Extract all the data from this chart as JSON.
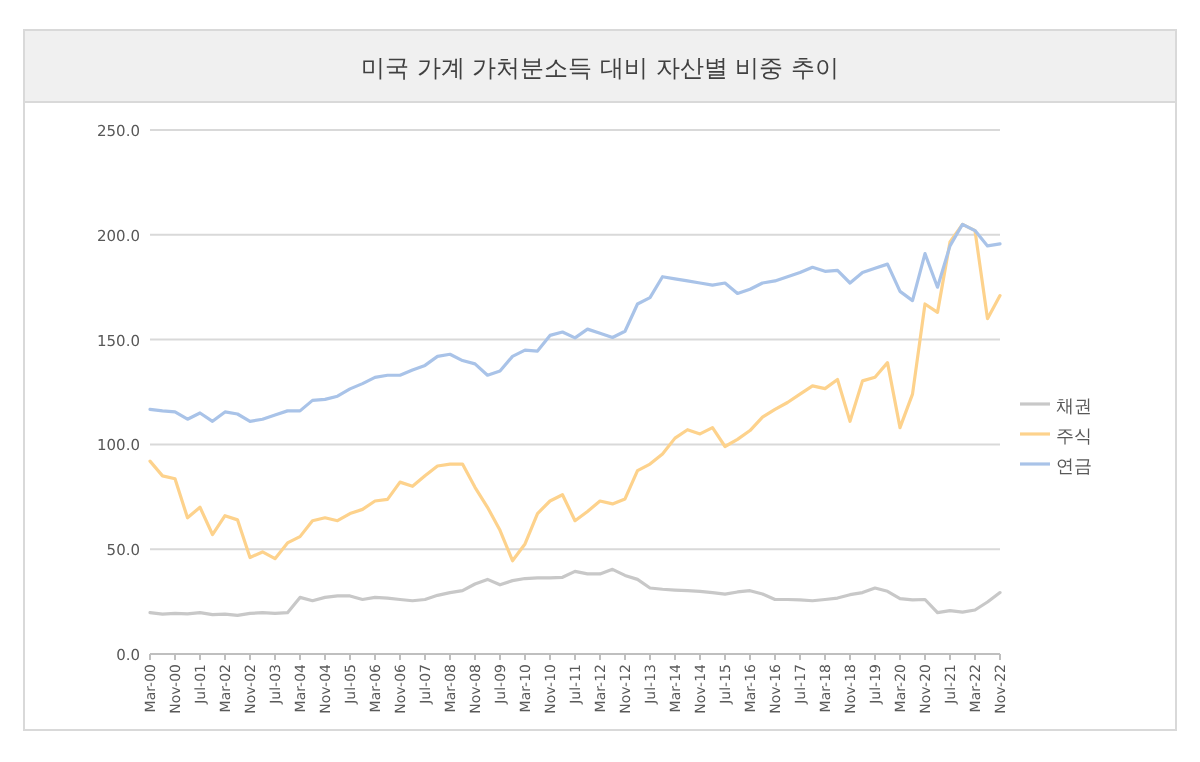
{
  "chart_data": {
    "type": "line",
    "title": "미국 가계 가처분소득 대비 자산별 비중 추이",
    "categories": [
      "Mar-00",
      null,
      "Nov-00",
      null,
      "Jul-01",
      null,
      "Mar-02",
      null,
      "Nov-02",
      null,
      "Jul-03",
      null,
      "Mar-04",
      null,
      "Nov-04",
      null,
      "Jul-05",
      null,
      "Mar-06",
      null,
      "Nov-06",
      null,
      "Jul-07",
      null,
      "Mar-08",
      null,
      "Nov-08",
      null,
      "Jul-09",
      null,
      "Mar-10",
      null,
      "Nov-10",
      null,
      "Jul-11",
      null,
      "Mar-12",
      null,
      "Nov-12",
      null,
      "Jul-13",
      null,
      "Mar-14",
      null,
      "Nov-14",
      null,
      "Jul-15",
      null,
      "Mar-16",
      null,
      "Nov-16",
      null,
      "Jul-17",
      null,
      "Mar-18",
      null,
      "Nov-18",
      null,
      "Jul-19",
      null,
      "Mar-20",
      null,
      "Nov-20",
      null,
      "Jul-21",
      null,
      "Mar-22",
      null,
      "Nov-22"
    ],
    "series": [
      {
        "name": "채권",
        "color": "#c8c8c8",
        "values": [
          19.7,
          19,
          19.4,
          19.1,
          19.7,
          18.8,
          19,
          18.4,
          19.4,
          19.7,
          19.4,
          19.7,
          27,
          25.4,
          27,
          27.7,
          27.7,
          26,
          27,
          26.7,
          26,
          25.4,
          26,
          28,
          29.3,
          30.2,
          33.4,
          35.6,
          33,
          35,
          36,
          36.3,
          36.3,
          36.6,
          39.4,
          38.2,
          38.2,
          40.4,
          37.5,
          35.6,
          31.5,
          30.9,
          30.5,
          30.2,
          29.9,
          29.3,
          28.6,
          29.6,
          30.2,
          28.6,
          26,
          26,
          25.8,
          25.4,
          26,
          26.7,
          28.3,
          29.3,
          31.5,
          29.9,
          26.4,
          25.8,
          26,
          19.7,
          20.7,
          20,
          21,
          24.8,
          29.3
        ]
      },
      {
        "name": "주식",
        "color": "#fdd28c",
        "values": [
          92,
          85,
          83.6,
          65,
          70,
          57,
          66,
          64,
          46,
          48.7,
          45.5,
          53,
          56,
          63.6,
          65,
          63.6,
          67,
          69,
          73,
          73.8,
          82,
          80,
          85,
          89.7,
          90.6,
          90.6,
          79.5,
          70,
          59,
          44.5,
          52.5,
          67,
          73,
          76,
          63.6,
          68,
          73,
          71.6,
          74,
          87.5,
          90.6,
          95.4,
          103,
          107,
          105,
          108,
          99,
          102.4,
          106.6,
          113,
          116.7,
          120,
          124,
          127.9,
          126.6,
          131,
          111,
          130.3,
          132,
          139,
          108,
          124,
          167,
          163,
          196.6,
          205,
          202,
          160,
          171
        ]
      },
      {
        "name": "연금",
        "color": "#a9c3e8",
        "values": [
          116.7,
          116,
          115.5,
          112,
          115,
          111,
          115.5,
          114.5,
          111,
          112,
          114,
          116,
          116,
          121,
          121.5,
          123,
          126.5,
          129,
          132,
          133,
          133,
          135.5,
          137.7,
          142,
          143,
          140,
          138.4,
          133,
          135,
          142,
          145,
          144.5,
          152,
          153.6,
          150.8,
          155,
          153,
          151,
          154,
          167,
          170,
          180,
          179,
          178,
          177,
          176,
          177,
          172,
          174,
          177,
          178,
          180,
          182,
          184.5,
          182.6,
          183,
          177,
          182,
          184,
          186,
          173,
          168.6,
          191,
          175,
          194.7,
          205,
          202,
          194.7,
          195.7
        ]
      }
    ],
    "ylim": [
      0,
      250
    ],
    "yticks": [
      {
        "value": 0,
        "label": "0.0"
      },
      {
        "value": 50,
        "label": "50.0"
      },
      {
        "value": 100,
        "label": "100.0"
      },
      {
        "value": 150,
        "label": "150.0"
      },
      {
        "value": 200,
        "label": "200.0"
      },
      {
        "value": 250,
        "label": "250.0"
      }
    ],
    "grid": "y",
    "legend": "right",
    "marker": "none",
    "line_style": "solid"
  }
}
